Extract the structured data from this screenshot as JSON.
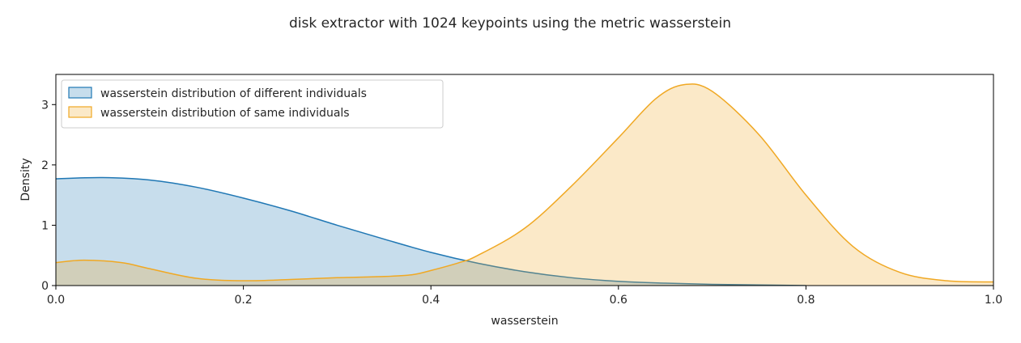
{
  "chart_data": {
    "type": "area",
    "title": "disk extractor with 1024 keypoints using the metric wasserstein",
    "xlabel": "wasserstein",
    "ylabel": "Density",
    "xlim": [
      0.0,
      1.0
    ],
    "ylim": [
      0,
      3.5
    ],
    "x_ticks": [
      "0.0",
      "0.2",
      "0.4",
      "0.6",
      "0.8",
      "1.0"
    ],
    "y_ticks": [
      "0",
      "1",
      "2",
      "3"
    ],
    "grid": false,
    "legend_position": "top-left",
    "series": [
      {
        "name": "wasserstein distribution of different individuals",
        "color": "#1f77b4",
        "fill": "#c3d9ec",
        "points": [
          [
            0.0,
            1.77
          ],
          [
            0.05,
            1.79
          ],
          [
            0.1,
            1.75
          ],
          [
            0.15,
            1.63
          ],
          [
            0.2,
            1.45
          ],
          [
            0.25,
            1.24
          ],
          [
            0.3,
            1.0
          ],
          [
            0.35,
            0.77
          ],
          [
            0.4,
            0.55
          ],
          [
            0.45,
            0.37
          ],
          [
            0.5,
            0.23
          ],
          [
            0.55,
            0.13
          ],
          [
            0.6,
            0.07
          ],
          [
            0.65,
            0.04
          ],
          [
            0.7,
            0.02
          ],
          [
            0.75,
            0.01
          ],
          [
            0.8,
            0.0
          ]
        ]
      },
      {
        "name": "wasserstein distribution of same individuals",
        "color": "#f0a823",
        "fill": "#ffe4b8",
        "points": [
          [
            0.0,
            0.38
          ],
          [
            0.03,
            0.42
          ],
          [
            0.07,
            0.38
          ],
          [
            0.1,
            0.28
          ],
          [
            0.15,
            0.12
          ],
          [
            0.2,
            0.08
          ],
          [
            0.25,
            0.1
          ],
          [
            0.3,
            0.13
          ],
          [
            0.35,
            0.15
          ],
          [
            0.38,
            0.18
          ],
          [
            0.4,
            0.25
          ],
          [
            0.43,
            0.38
          ],
          [
            0.45,
            0.5
          ],
          [
            0.5,
            0.95
          ],
          [
            0.55,
            1.65
          ],
          [
            0.6,
            2.45
          ],
          [
            0.64,
            3.1
          ],
          [
            0.67,
            3.33
          ],
          [
            0.7,
            3.22
          ],
          [
            0.75,
            2.5
          ],
          [
            0.8,
            1.5
          ],
          [
            0.85,
            0.65
          ],
          [
            0.9,
            0.22
          ],
          [
            0.95,
            0.08
          ],
          [
            1.0,
            0.06
          ]
        ]
      }
    ]
  }
}
